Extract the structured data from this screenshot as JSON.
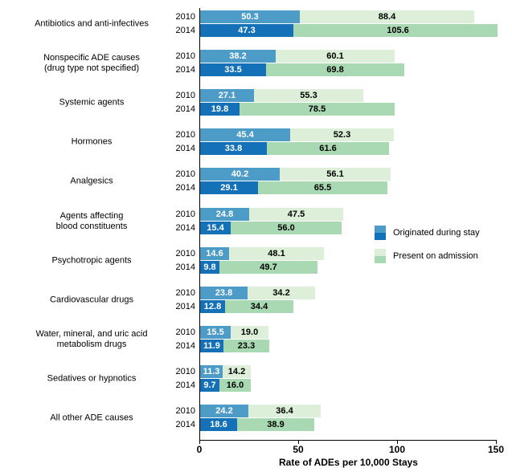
{
  "chart_data": {
    "type": "bar",
    "orientation": "horizontal",
    "stacked": true,
    "xlabel": "Rate of ADEs per 10,000 Stays",
    "xlim": [
      0,
      150
    ],
    "xticks": [
      "0",
      "50",
      "100",
      "150"
    ],
    "grid": false,
    "legend": {
      "position": "middle-right",
      "entries": [
        {
          "name": "Originated during stay",
          "swatch_colors": [
            "#4D9BC7",
            "#1571B7"
          ]
        },
        {
          "name": "Present on admission",
          "swatch_colors": [
            "#DDEFD8",
            "#A9D9B2"
          ]
        }
      ]
    },
    "colors": {
      "originated_2010": "#4D9BC7",
      "originated_2014": "#1571B7",
      "admission_2010": "#DDEFD8",
      "admission_2014": "#A9D9B2",
      "value_label_on_blue": "#FFFFFF",
      "value_label_on_green": "#000000",
      "axis": "#000000"
    },
    "series_years": [
      "2010",
      "2014"
    ],
    "categories": [
      {
        "label_lines": [
          "Antibiotics and anti-infectives"
        ],
        "rows": [
          {
            "year": "2010",
            "originated": 50.3,
            "present_on_admission": 88.4
          },
          {
            "year": "2014",
            "originated": 47.3,
            "present_on_admission": 105.6
          }
        ]
      },
      {
        "label_lines": [
          "Nonspecific ADE causes",
          "(drug type not specified)"
        ],
        "rows": [
          {
            "year": "2010",
            "originated": 38.2,
            "present_on_admission": 60.1
          },
          {
            "year": "2014",
            "originated": 33.5,
            "present_on_admission": 69.8
          }
        ]
      },
      {
        "label_lines": [
          "Systemic agents"
        ],
        "rows": [
          {
            "year": "2010",
            "originated": 27.1,
            "present_on_admission": 55.3
          },
          {
            "year": "2014",
            "originated": 19.8,
            "present_on_admission": 78.5
          }
        ]
      },
      {
        "label_lines": [
          "Hormones"
        ],
        "rows": [
          {
            "year": "2010",
            "originated": 45.4,
            "present_on_admission": 52.3
          },
          {
            "year": "2014",
            "originated": 33.8,
            "present_on_admission": 61.6
          }
        ]
      },
      {
        "label_lines": [
          "Analgesics"
        ],
        "rows": [
          {
            "year": "2010",
            "originated": 40.2,
            "present_on_admission": 56.1
          },
          {
            "year": "2014",
            "originated": 29.1,
            "present_on_admission": 65.5
          }
        ]
      },
      {
        "label_lines": [
          "Agents affecting",
          "blood constituents"
        ],
        "rows": [
          {
            "year": "2010",
            "originated": 24.8,
            "present_on_admission": 47.5
          },
          {
            "year": "2014",
            "originated": 15.4,
            "present_on_admission": 56.0
          }
        ]
      },
      {
        "label_lines": [
          "Psychotropic agents"
        ],
        "rows": [
          {
            "year": "2010",
            "originated": 14.6,
            "present_on_admission": 48.1
          },
          {
            "year": "2014",
            "originated": 9.8,
            "present_on_admission": 49.7
          }
        ]
      },
      {
        "label_lines": [
          "Cardiovascular drugs"
        ],
        "rows": [
          {
            "year": "2010",
            "originated": 23.8,
            "present_on_admission": 34.2
          },
          {
            "year": "2014",
            "originated": 12.8,
            "present_on_admission": 34.4
          }
        ]
      },
      {
        "label_lines": [
          "Water, mineral, and uric acid",
          "metabolism drugs"
        ],
        "rows": [
          {
            "year": "2010",
            "originated": 15.5,
            "present_on_admission": 19.0
          },
          {
            "year": "2014",
            "originated": 11.9,
            "present_on_admission": 23.3
          }
        ]
      },
      {
        "label_lines": [
          "Sedatives or hypnotics"
        ],
        "rows": [
          {
            "year": "2010",
            "originated": 11.3,
            "present_on_admission": 14.2
          },
          {
            "year": "2014",
            "originated": 9.7,
            "present_on_admission": 16.0
          }
        ]
      },
      {
        "label_lines": [
          "All other ADE causes"
        ],
        "rows": [
          {
            "year": "2010",
            "originated": 24.2,
            "present_on_admission": 36.4
          },
          {
            "year": "2014",
            "originated": 18.6,
            "present_on_admission": 38.9
          }
        ]
      }
    ]
  }
}
